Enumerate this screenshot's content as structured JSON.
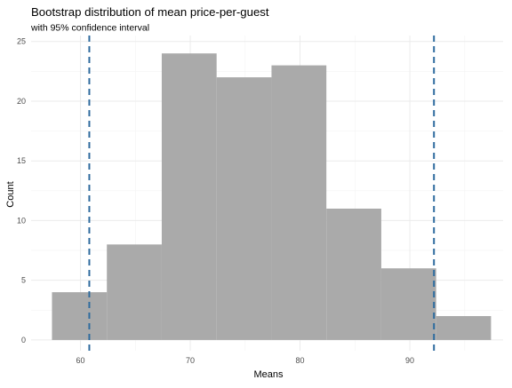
{
  "chart_data": {
    "type": "bar",
    "title": "Bootstrap distribution of mean price-per-guest",
    "subtitle": "with 95% confidence interval",
    "xlabel": "Means",
    "ylabel": "Count",
    "xlim": [
      55.5,
      98.5
    ],
    "ylim": [
      -0.9,
      25.5
    ],
    "x_ticks": [
      60,
      70,
      80,
      90
    ],
    "y_ticks": [
      0,
      5,
      10,
      15,
      20,
      25
    ],
    "x_minor_ticks": [
      55,
      65,
      75,
      85,
      95
    ],
    "y_minor_ticks": [
      2.5,
      7.5,
      12.5,
      17.5,
      22.5
    ],
    "grid": true,
    "bins": [
      {
        "x0": 57.4,
        "x1": 62.4,
        "count": 4
      },
      {
        "x0": 62.4,
        "x1": 67.4,
        "count": 8
      },
      {
        "x0": 67.4,
        "x1": 72.4,
        "count": 24
      },
      {
        "x0": 72.4,
        "x1": 77.4,
        "count": 22
      },
      {
        "x0": 77.4,
        "x1": 82.4,
        "count": 23
      },
      {
        "x0": 82.4,
        "x1": 87.4,
        "count": 11
      },
      {
        "x0": 87.4,
        "x1": 92.4,
        "count": 6
      },
      {
        "x0": 92.4,
        "x1": 97.4,
        "count": 2
      }
    ],
    "confidence_interval": [
      60.8,
      92.2
    ],
    "colors": {
      "bar": "#aaaaaa",
      "ci_line": "#2e6b9e",
      "grid_major": "#ebebeb",
      "grid_minor": "#f3f3f3",
      "text": "#000000",
      "tick_text": "#4d4d4d"
    }
  }
}
